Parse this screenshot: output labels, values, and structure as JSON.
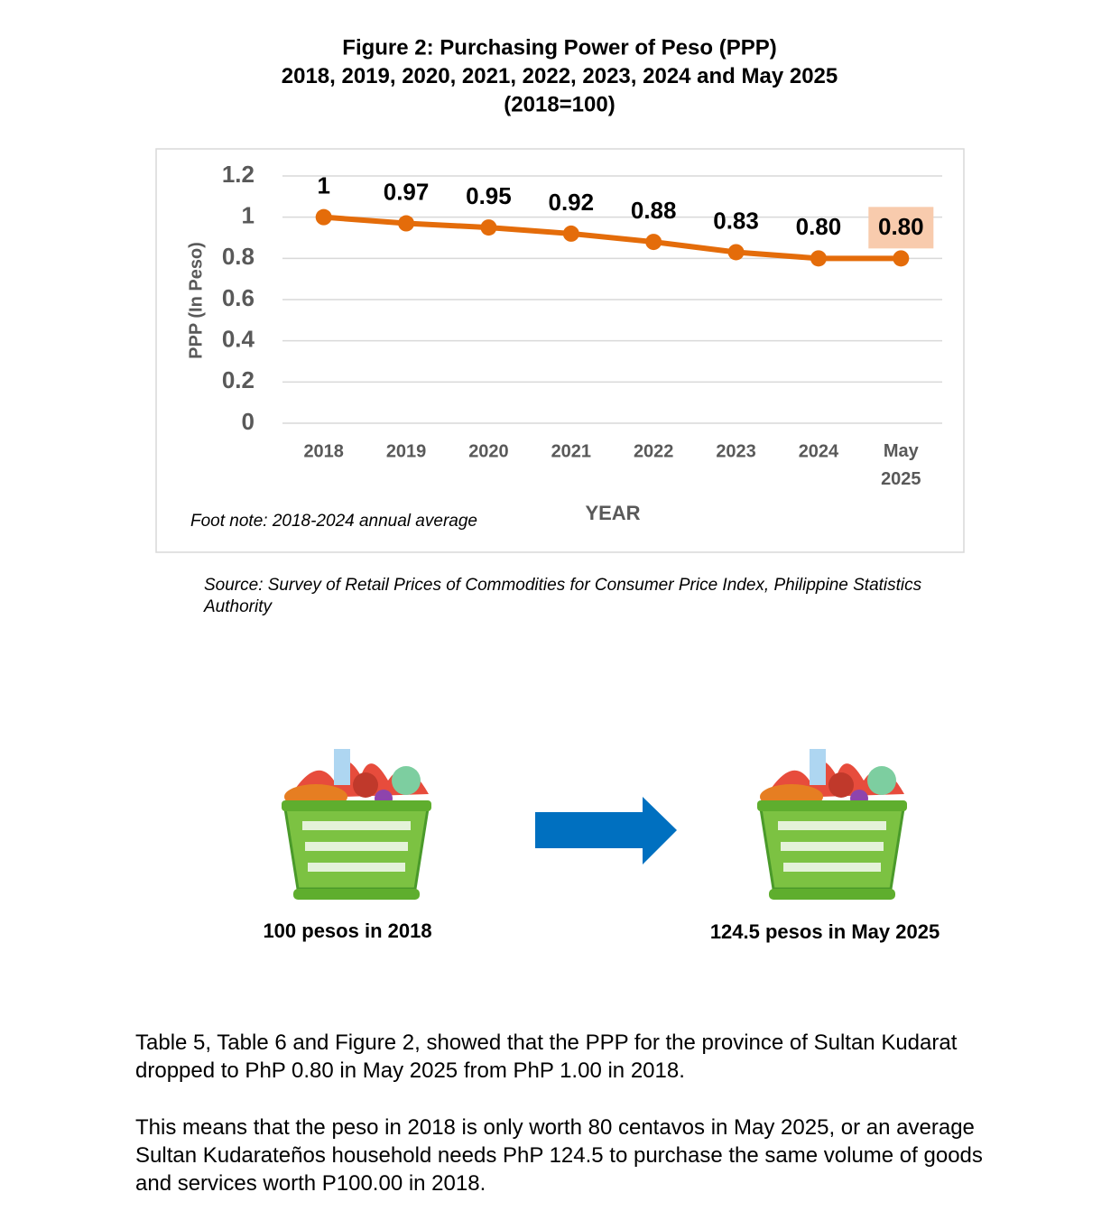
{
  "chart_data": {
    "type": "line",
    "title_lines": [
      "Figure 2:  Purchasing Power of Peso (PPP)",
      "2018, 2019, 2020, 2021, 2022, 2023, 2024 and May 2025",
      "(2018=100)"
    ],
    "categories": [
      "2018",
      "2019",
      "2020",
      "2021",
      "2022",
      "2023",
      "2024",
      "May 2025"
    ],
    "series": [
      {
        "name": "PPP",
        "color": "#e46c0a",
        "values": [
          1,
          0.97,
          0.95,
          0.92,
          0.88,
          0.83,
          0.8,
          0.8
        ],
        "value_labels": [
          "1",
          "0.97",
          "0.95",
          "0.92",
          "0.88",
          "0.83",
          "0.80",
          "0.80"
        ]
      }
    ],
    "ylim": [
      0,
      1.2
    ],
    "yticks": [
      0,
      0.2,
      0.4,
      0.6,
      0.8,
      1,
      1.2
    ],
    "grid": true,
    "x_label": "YEAR",
    "y_label": "PPP (In Peso)",
    "footnote": "Foot note: 2018-2024 annual average"
  },
  "source": "Source: Survey of Retail Prices of Commodities for Consumer Price Index, Philippine Statistics Authority",
  "captions": [
    "100 pesos in 2018",
    "124.5 pesos in May 2025"
  ],
  "paragraphs": [
    "Table 5, Table 6 and Figure 2, showed that the PPP for the province of Sultan Kudarat dropped to PhP 0.80 in May 2025 from PhP 1.00 in 2018.",
    "This means that the peso in 2018 is only worth 80 centavos in May 2025, or an average Sultan Kudarateños household needs PhP 124.5 to purchase the same volume of goods and services worth P100.00 in 2018."
  ]
}
